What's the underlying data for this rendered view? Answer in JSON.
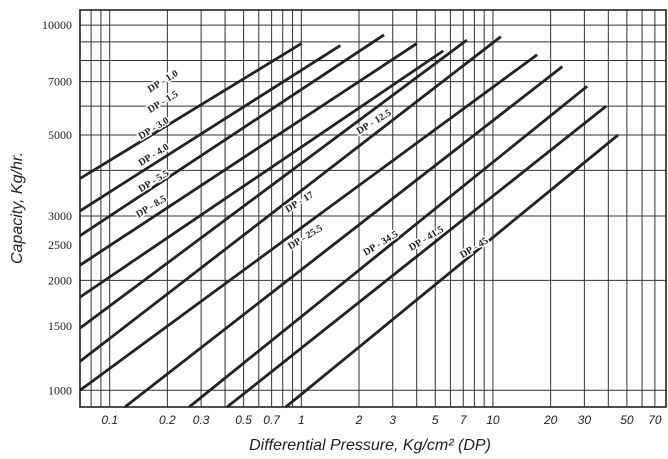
{
  "chart_data": {
    "type": "line",
    "title": "",
    "xlabel": "Differential Pressure, Kg/cm² (DP)",
    "ylabel": "Capacity, Kg/hr.",
    "x_scale": "log",
    "y_scale": "log",
    "xlim": [
      0.07,
      80
    ],
    "ylim": [
      900,
      11000
    ],
    "grid": true,
    "x_ticks": [
      0.1,
      0.2,
      0.3,
      0.5,
      0.7,
      1,
      2,
      3,
      5,
      7,
      10,
      20,
      30,
      50,
      70
    ],
    "x_tick_labels": [
      "0.1",
      "0.2",
      "0.3",
      "0.5",
      "0.7",
      "1",
      "2",
      "3",
      "5",
      "7",
      "10",
      "20",
      "30",
      "50",
      "70"
    ],
    "y_ticks": [
      1000,
      1500,
      2000,
      2500,
      3000,
      5000,
      7000,
      10000
    ],
    "y_tick_labels": [
      "1000",
      "1500",
      "2000",
      "2500",
      "3000",
      "5000",
      "7000",
      "10000"
    ],
    "series": [
      {
        "name": "DP - 1.0",
        "x": [
          0.07,
          1.0
        ],
        "y": [
          3800,
          8900
        ]
      },
      {
        "name": "DP - 1.5",
        "x": [
          0.07,
          1.6
        ],
        "y": [
          3100,
          8800
        ]
      },
      {
        "name": "DP - 3.0",
        "x": [
          0.07,
          2.7
        ],
        "y": [
          2650,
          9400
        ]
      },
      {
        "name": "DP - 4.0",
        "x": [
          0.07,
          4.0
        ],
        "y": [
          2200,
          8900
        ]
      },
      {
        "name": "DP - 5.5",
        "x": [
          0.07,
          5.5
        ],
        "y": [
          1800,
          8500
        ]
      },
      {
        "name": "DP - 8.5",
        "x": [
          0.07,
          7.3
        ],
        "y": [
          1480,
          9100
        ]
      },
      {
        "name": "DP - 12.5",
        "x": [
          0.07,
          11.0
        ],
        "y": [
          1200,
          9300
        ]
      },
      {
        "name": "DP - 17",
        "x": [
          0.07,
          17.0
        ],
        "y": [
          1000,
          8300
        ]
      },
      {
        "name": "DP - 25.5",
        "x": [
          0.12,
          23.0
        ],
        "y": [
          900,
          7700
        ]
      },
      {
        "name": "DP - 34.5",
        "x": [
          0.26,
          31.0
        ],
        "y": [
          900,
          6800
        ]
      },
      {
        "name": "DP - 41.5",
        "x": [
          0.41,
          39.0
        ],
        "y": [
          900,
          6000
        ]
      },
      {
        "name": "DP - 45",
        "x": [
          0.83,
          45.0
        ],
        "y": [
          900,
          5000
        ]
      }
    ],
    "labels": [
      {
        "text": "DP - 1.0",
        "x": 0.19,
        "y": 7000
      },
      {
        "text": "DP - 1.5",
        "x": 0.19,
        "y": 6150
      },
      {
        "text": "DP - 3.0",
        "x": 0.17,
        "y": 5200
      },
      {
        "text": "DP - 4.0",
        "x": 0.17,
        "y": 4400
      },
      {
        "text": "DP - 5.5",
        "x": 0.17,
        "y": 3730
      },
      {
        "text": "DP - 8.5",
        "x": 0.165,
        "y": 3180
      },
      {
        "text": "DP - 12.5",
        "x": 2.4,
        "y": 5420
      },
      {
        "text": "DP - 17",
        "x": 0.98,
        "y": 3270
      },
      {
        "text": "DP - 25.5",
        "x": 1.05,
        "y": 2620
      },
      {
        "text": "DP - 34.5",
        "x": 2.6,
        "y": 2520
      },
      {
        "text": "DP - 41.5",
        "x": 4.5,
        "y": 2600
      },
      {
        "text": "DP - 45",
        "x": 8.0,
        "y": 2450
      }
    ],
    "line_color": "#222222"
  }
}
